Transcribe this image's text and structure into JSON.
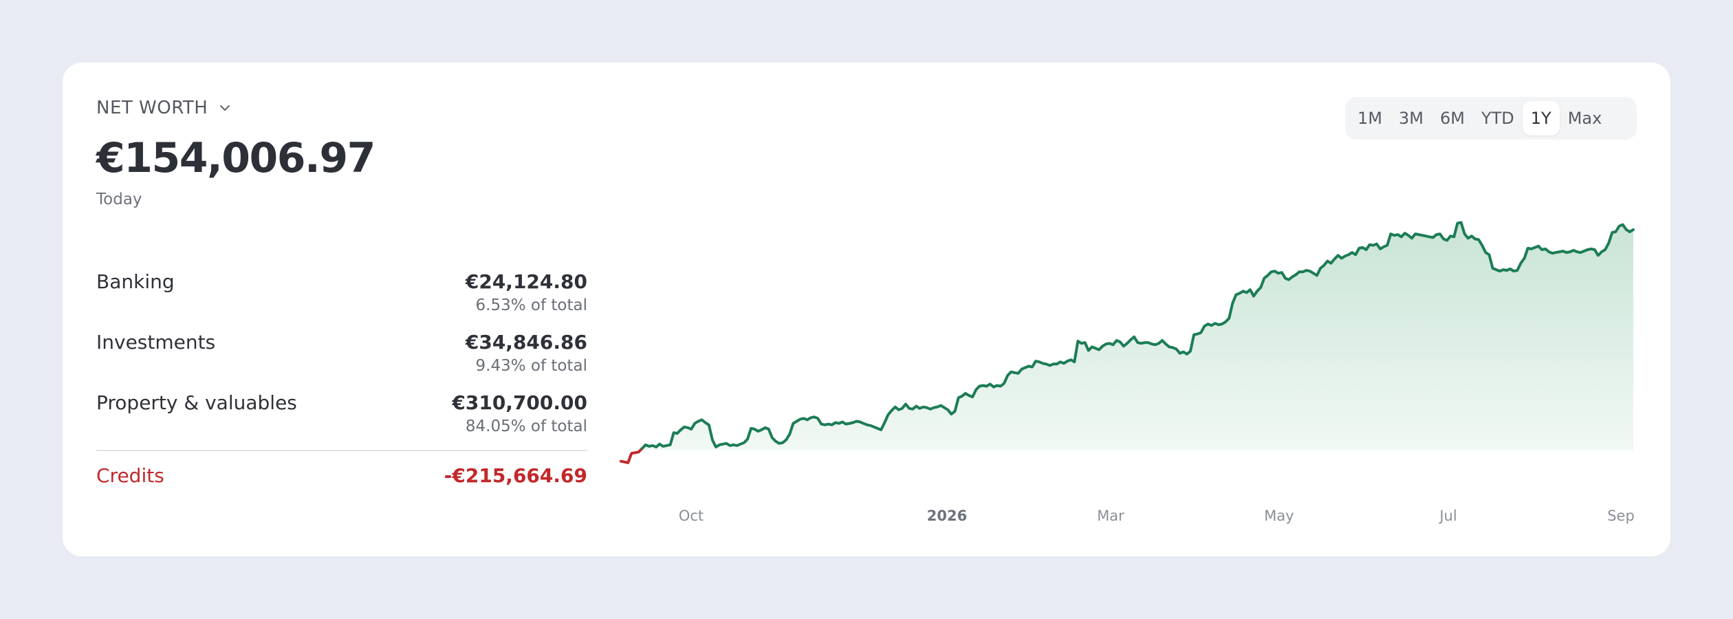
{
  "widget": {
    "title": "NET WORTH",
    "total": "€154,006.97",
    "date_label": "Today"
  },
  "breakdown": [
    {
      "label": "Banking",
      "value": "€24,124.80",
      "share": "6.53% of total"
    },
    {
      "label": "Investments",
      "value": "€34,846.86",
      "share": "9.43% of total"
    },
    {
      "label": "Property & valuables",
      "value": "€310,700.00",
      "share": "84.05% of total"
    }
  ],
  "credits": {
    "label": "Credits",
    "value": "-€215,664.69"
  },
  "periods": {
    "options": [
      "1M",
      "3M",
      "6M",
      "YTD",
      "1Y",
      "Max"
    ],
    "selected": "1Y"
  },
  "colors": {
    "line": "#1c7d55",
    "negative": "#c2282b",
    "fill_top": "#c9e4d6"
  },
  "chart_data": {
    "type": "area",
    "x_tick_labels": [
      "Oct",
      "2026",
      "Mar",
      "May",
      "Jul",
      "Sep"
    ],
    "bold_tick": "2026",
    "series": [
      {
        "values": [
          -8000,
          -8500,
          -9000,
          -2500,
          -2000,
          -1500,
          1000,
          3500,
          2500,
          3000,
          2000,
          4000,
          2500,
          3000,
          3500,
          12000,
          11500,
          14000,
          16000,
          15500,
          14500,
          18500,
          20000,
          21000,
          19000,
          17500,
          7000,
          2000,
          3500,
          4000,
          4500,
          3000,
          3500,
          3000,
          4000,
          5000,
          7500,
          15000,
          14500,
          13000,
          14000,
          15500,
          14500,
          8500,
          6000,
          4500,
          5000,
          7000,
          11000,
          18500,
          20000,
          21500,
          22000,
          21000,
          22500,
          23000,
          22000,
          18000,
          17500,
          18000,
          17500,
          19000,
          18500,
          19500,
          18000,
          18500,
          19000,
          20000,
          19500,
          18500,
          17500,
          17000,
          16000,
          15000,
          14000,
          19000,
          24500,
          27500,
          30000,
          28000,
          29000,
          32000,
          29000,
          28500,
          30500,
          29000,
          30000,
          29500,
          28500,
          29500,
          30000,
          31000,
          29500,
          28000,
          25000,
          27000,
          36500,
          37500,
          39500,
          38000,
          37000,
          42000,
          44500,
          45000,
          44500,
          46000,
          44000,
          45000,
          44500,
          46500,
          52000,
          54500,
          54000,
          53500,
          56500,
          57500,
          58500,
          58000,
          62000,
          61500,
          60500,
          60000,
          59000,
          60000,
          60000,
          61500,
          60500,
          62000,
          63000,
          61500,
          76000,
          74500,
          75000,
          69500,
          72000,
          71000,
          70000,
          72500,
          74000,
          74500,
          73500,
          76500,
          75500,
          72500,
          74500,
          77000,
          79000,
          75000,
          74500,
          75000,
          75000,
          74000,
          73500,
          74500,
          76500,
          74000,
          72000,
          71500,
          70500,
          67500,
          68500,
          67000,
          69000,
          80500,
          81000,
          82000,
          86500,
          88000,
          87000,
          88500,
          87500,
          88000,
          89500,
          92000,
          102500,
          108500,
          109500,
          111000,
          110000,
          112000,
          107500,
          111000,
          113500,
          120000,
          122000,
          124500,
          125000,
          123500,
          124000,
          120000,
          119000,
          121000,
          122500,
          124500,
          124500,
          125500,
          125000,
          123500,
          122000,
          127000,
          129000,
          132000,
          130500,
          133500,
          136000,
          134000,
          135500,
          136500,
          138000,
          136500,
          141000,
          141500,
          140000,
          143500,
          143000,
          144000,
          140500,
          142000,
          143000,
          151000,
          150000,
          150500,
          149000,
          151500,
          150000,
          148000,
          151000,
          150500,
          150000,
          149500,
          149000,
          148500,
          150500,
          151000,
          147500,
          146500,
          149500,
          149000,
          158500,
          159000,
          151000,
          148000,
          149500,
          147500,
          147000,
          143000,
          138000,
          136500,
          127000,
          126000,
          125000,
          126000,
          125500,
          126500,
          125000,
          125500,
          130500,
          134000,
          141000,
          140500,
          141500,
          142500,
          140000,
          140500,
          138500,
          137500,
          138000,
          138500,
          139000,
          138000,
          138500,
          139500,
          138500,
          138000,
          139000,
          140000,
          140500,
          140000,
          136000,
          138500,
          140000,
          144500,
          152000,
          152500,
          156500,
          157500,
          154000,
          152500,
          154000
        ],
        "ylim": [
          -12000,
          165000
        ]
      }
    ],
    "baseline": 0
  }
}
